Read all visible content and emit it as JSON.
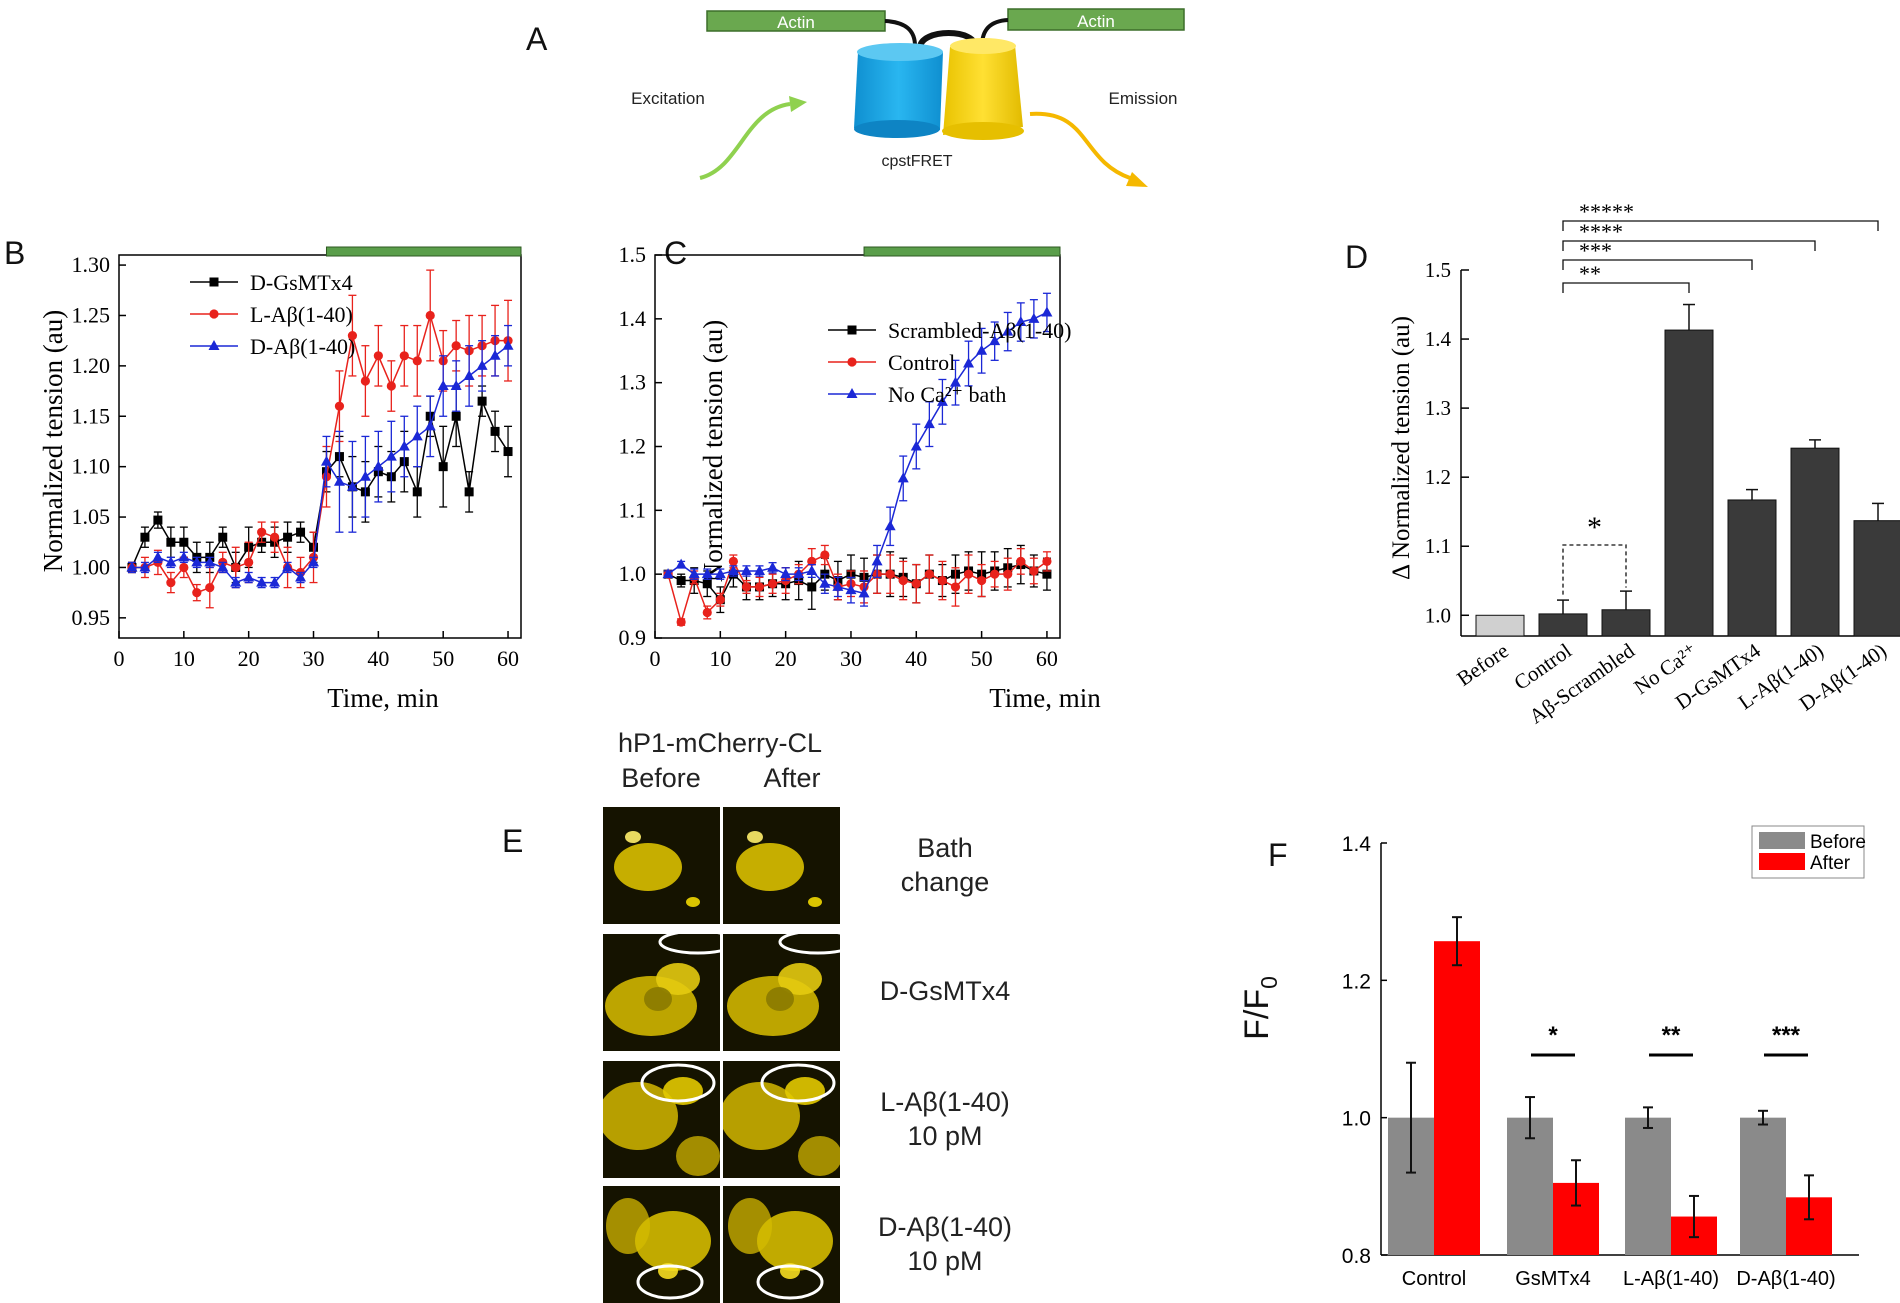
{
  "panel_labels": {
    "a": "A",
    "b": "B",
    "c": "C",
    "d": "D",
    "e": "E",
    "f": "F"
  },
  "diagram": {
    "actin_left": "Actin",
    "actin_right": "Actin",
    "excitation": "Excitation",
    "emission": "Emission",
    "sensor": "cpstFRET",
    "colors": {
      "actin": "#6aa84f",
      "cyan": "#1aa7e0",
      "yellow": "#f5d000",
      "green_arrow": "#8fd14f",
      "orange_arrow": "#f5b800"
    }
  },
  "panel_e": {
    "title": "hP1-mCherry-CL",
    "col_before": "Before",
    "col_after": "After",
    "rows": [
      {
        "line1": "Bath",
        "line2": "change"
      },
      {
        "line1": "D-GsMTx4",
        "line2": ""
      },
      {
        "line1": "L-Aβ(1-40)",
        "line2": "10 pM"
      },
      {
        "line1": "D-Aβ(1-40)",
        "line2": "10 pM"
      }
    ]
  },
  "chart_data": [
    {
      "id": "B",
      "type": "line",
      "xlabel": "Time, min",
      "ylabel": "Normalized tension (au)",
      "xlim": [
        0,
        62
      ],
      "ylim": [
        0.93,
        1.31
      ],
      "xticks": [
        0,
        10,
        20,
        30,
        40,
        50,
        60
      ],
      "yticks": [
        0.95,
        1.0,
        1.05,
        1.1,
        1.15,
        1.2,
        1.25,
        1.3
      ],
      "ytick_labels": [
        "0.95",
        "1.00",
        "1.05",
        "1.10",
        "1.15",
        "1.20",
        "1.25",
        "1.30"
      ],
      "treatment_bar": [
        32,
        62
      ],
      "x": [
        2,
        4,
        6,
        8,
        10,
        12,
        14,
        16,
        18,
        20,
        22,
        24,
        26,
        28,
        30,
        32,
        34,
        36,
        38,
        40,
        42,
        44,
        46,
        48,
        50,
        52,
        54,
        56,
        58,
        60
      ],
      "series": [
        {
          "name": "D-GsMTx4",
          "color": "#000000",
          "marker": "square",
          "values": [
            1.0,
            1.03,
            1.047,
            1.025,
            1.025,
            1.01,
            1.01,
            1.03,
            1.0,
            1.02,
            1.025,
            1.025,
            1.03,
            1.035,
            1.02,
            1.095,
            1.11,
            1.08,
            1.075,
            1.095,
            1.09,
            1.105,
            1.075,
            1.15,
            1.1,
            1.15,
            1.075,
            1.165,
            1.135,
            1.115
          ],
          "errors": [
            0.005,
            0.01,
            0.008,
            0.015,
            0.015,
            0.015,
            0.015,
            0.01,
            0.015,
            0.02,
            0.01,
            0.015,
            0.015,
            0.01,
            0.015,
            0.02,
            0.02,
            0.03,
            0.03,
            0.025,
            0.025,
            0.03,
            0.025,
            0.02,
            0.04,
            0.03,
            0.02,
            0.015,
            0.02,
            0.025
          ]
        },
        {
          "name": "L-Aβ(1-40)",
          "color": "#e8221c",
          "marker": "circle",
          "values": [
            1.0,
            1.0,
            1.005,
            0.985,
            1.0,
            0.975,
            0.98,
            1.005,
            1.0,
            1.005,
            1.035,
            1.03,
            1.0,
            0.995,
            1.01,
            1.09,
            1.16,
            1.23,
            1.185,
            1.21,
            1.18,
            1.21,
            1.205,
            1.25,
            1.205,
            1.22,
            1.215,
            1.22,
            1.225,
            1.225
          ],
          "errors": [
            0.005,
            0.01,
            0.012,
            0.01,
            0.01,
            0.008,
            0.02,
            0.01,
            0.02,
            0.02,
            0.01,
            0.015,
            0.02,
            0.015,
            0.025,
            0.03,
            0.035,
            0.04,
            0.035,
            0.03,
            0.025,
            0.03,
            0.035,
            0.045,
            0.03,
            0.025,
            0.035,
            0.03,
            0.035,
            0.04
          ]
        },
        {
          "name": "D-Aβ(1-40)",
          "color": "#1b28d6",
          "marker": "triangle",
          "values": [
            1.0,
            1.0,
            1.01,
            1.005,
            1.01,
            1.005,
            1.005,
            1.0,
            0.985,
            0.99,
            0.985,
            0.985,
            1.0,
            0.99,
            1.005,
            1.105,
            1.085,
            1.08,
            1.09,
            1.1,
            1.11,
            1.12,
            1.13,
            1.14,
            1.18,
            1.18,
            1.19,
            1.2,
            1.21,
            1.22
          ],
          "errors": [
            0.005,
            0.005,
            0.005,
            0.005,
            0.005,
            0.005,
            0.005,
            0.005,
            0.005,
            0.005,
            0.005,
            0.005,
            0.005,
            0.005,
            0.005,
            0.025,
            0.05,
            0.045,
            0.04,
            0.035,
            0.035,
            0.03,
            0.03,
            0.03,
            0.03,
            0.025,
            0.03,
            0.025,
            0.02,
            0.02
          ]
        }
      ]
    },
    {
      "id": "C",
      "type": "line",
      "xlabel": "Time, min",
      "ylabel": "Normalized tension (au)",
      "xlim": [
        0,
        62
      ],
      "ylim": [
        0.9,
        1.5
      ],
      "xticks": [
        0,
        10,
        20,
        30,
        40,
        50,
        60
      ],
      "yticks": [
        0.9,
        1.0,
        1.1,
        1.2,
        1.3,
        1.4,
        1.5
      ],
      "ytick_labels": [
        "0.9",
        "1.0",
        "1.1",
        "1.2",
        "1.3",
        "1.4",
        "1.5"
      ],
      "treatment_bar": [
        32,
        62
      ],
      "x": [
        2,
        4,
        6,
        8,
        10,
        12,
        14,
        16,
        18,
        20,
        22,
        24,
        26,
        28,
        30,
        32,
        34,
        36,
        38,
        40,
        42,
        44,
        46,
        48,
        50,
        52,
        54,
        56,
        58,
        60
      ],
      "series": [
        {
          "name": "Scrambled-Aβ(1-40)",
          "color": "#000000",
          "marker": "square",
          "values": [
            1.0,
            0.99,
            0.99,
            0.985,
            0.96,
            1.0,
            0.98,
            0.98,
            0.985,
            0.985,
            0.99,
            0.98,
            1.0,
            0.99,
            1.0,
            0.995,
            1.0,
            1.0,
            0.995,
            0.985,
            1.0,
            0.99,
            1.0,
            1.005,
            1.0,
            1.005,
            1.01,
            1.015,
            1.005,
            1.0
          ],
          "errors": [
            0.005,
            0.01,
            0.02,
            0.02,
            0.02,
            0.02,
            0.02,
            0.02,
            0.02,
            0.025,
            0.03,
            0.035,
            0.025,
            0.03,
            0.03,
            0.03,
            0.03,
            0.035,
            0.03,
            0.03,
            0.03,
            0.025,
            0.03,
            0.03,
            0.035,
            0.03,
            0.03,
            0.03,
            0.025,
            0.025
          ]
        },
        {
          "name": "Control",
          "color": "#e8221c",
          "marker": "circle",
          "values": [
            1.0,
            0.925,
            0.995,
            0.94,
            0.96,
            1.02,
            0.98,
            0.98,
            0.985,
            0.99,
            1.0,
            1.02,
            1.03,
            0.98,
            0.985,
            0.98,
            1.0,
            1.0,
            0.99,
            0.985,
            1.0,
            0.99,
            0.98,
            1.0,
            0.99,
            1.0,
            1.0,
            1.02,
            1.005,
            1.02
          ],
          "errors": [
            0.005,
            0.005,
            0.01,
            0.01,
            0.01,
            0.01,
            0.01,
            0.015,
            0.015,
            0.02,
            0.015,
            0.02,
            0.015,
            0.02,
            0.02,
            0.025,
            0.03,
            0.03,
            0.03,
            0.03,
            0.03,
            0.03,
            0.03,
            0.03,
            0.025,
            0.02,
            0.025,
            0.02,
            0.02,
            0.015
          ]
        },
        {
          "name": "No Ca²⁺ bath",
          "color": "#1b28d6",
          "marker": "triangle",
          "values": [
            1.0,
            1.015,
            1.0,
            1.0,
            1.0,
            1.005,
            1.005,
            1.005,
            1.01,
            1.0,
            1.0,
            1.005,
            0.985,
            0.98,
            0.975,
            0.97,
            1.02,
            1.075,
            1.15,
            1.2,
            1.235,
            1.27,
            1.3,
            1.33,
            1.35,
            1.365,
            1.38,
            1.395,
            1.4,
            1.41
          ],
          "errors": [
            0.005,
            0.005,
            0.008,
            0.008,
            0.008,
            0.008,
            0.008,
            0.008,
            0.008,
            0.01,
            0.01,
            0.01,
            0.015,
            0.015,
            0.02,
            0.02,
            0.025,
            0.03,
            0.035,
            0.035,
            0.035,
            0.035,
            0.035,
            0.035,
            0.035,
            0.03,
            0.03,
            0.03,
            0.03,
            0.03
          ]
        }
      ]
    },
    {
      "id": "D",
      "type": "bar",
      "ylabel": "Δ Normalized tension (au)",
      "ylim": [
        0.97,
        1.5
      ],
      "yticks": [
        1.0,
        1.1,
        1.2,
        1.3,
        1.4,
        1.5
      ],
      "ytick_labels": [
        "1.0",
        "1.1",
        "1.2",
        "1.3",
        "1.4",
        "1.5"
      ],
      "categories": [
        "Before",
        "Control",
        "Aβ-Scrambled",
        "No Ca²⁺",
        "D-GsMTx4",
        "L-Aβ(1-40)",
        "D-Aβ(1-40)"
      ],
      "values": [
        1.0,
        1.002,
        1.008,
        1.413,
        1.167,
        1.242,
        1.137
      ],
      "errors": [
        0.0,
        0.02,
        0.027,
        0.037,
        0.015,
        0.012,
        0.025
      ],
      "bar_colors": [
        "#d0d0d0",
        "#3a3a3a",
        "#3a3a3a",
        "#3a3a3a",
        "#3a3a3a",
        "#3a3a3a",
        "#3a3a3a"
      ],
      "significance": [
        {
          "from": 1,
          "to": 3,
          "label": "**"
        },
        {
          "from": 1,
          "to": 4,
          "label": "***"
        },
        {
          "from": 1,
          "to": 5,
          "label": "****"
        },
        {
          "from": 1,
          "to": 6,
          "label": "*****"
        },
        {
          "from": 1,
          "to": 2,
          "label": "*",
          "style": "dashed"
        }
      ]
    },
    {
      "id": "F",
      "type": "bar",
      "ylabel": "F/F",
      "ylabel_sub": "0",
      "ylim": [
        0.8,
        1.4
      ],
      "yticks": [
        0.8,
        1.0,
        1.2,
        1.4
      ],
      "ytick_labels": [
        "0.8",
        "1.0",
        "1.2",
        "1.4"
      ],
      "categories": [
        "Control",
        "GsMTx4",
        "L-Aβ(1-40)",
        "D-Aβ(1-40)"
      ],
      "series": [
        {
          "name": "Before",
          "color": "#8a8a8a",
          "values": [
            1.0,
            1.0,
            1.0,
            1.0
          ],
          "errors": [
            0.08,
            0.03,
            0.015,
            0.01
          ]
        },
        {
          "name": "After",
          "color": "#ff0000",
          "values": [
            1.257,
            0.905,
            0.856,
            0.884
          ],
          "errors": [
            0.035,
            0.033,
            0.03,
            0.032
          ]
        }
      ],
      "significance": [
        "",
        "*",
        "**",
        "***"
      ]
    }
  ]
}
